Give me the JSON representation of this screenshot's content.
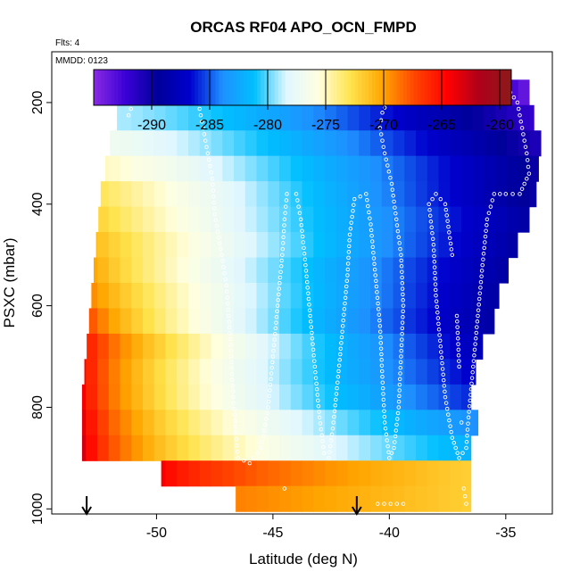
{
  "chart_data": {
    "type": "heatmap",
    "title": "ORCAS RF04 APO_OCN_FMPD",
    "note_flights": "Flts: 4",
    "note_date": "MMDD: 0123",
    "xlabel": "Latitude (deg N)",
    "ylabel": "PSXC (mbar)",
    "xlim": [
      -54.5,
      -33
    ],
    "ylim": [
      1010,
      100
    ],
    "x_ticks": [
      -50,
      -45,
      -40,
      -35
    ],
    "x_tick_labels": [
      "-50",
      "-45",
      "-40",
      "-35"
    ],
    "y_ticks": [
      200,
      400,
      600,
      800,
      1000
    ],
    "y_tick_labels": [
      "200",
      "400",
      "600",
      "800",
      "1000"
    ],
    "y_reversed": true,
    "colorbar": {
      "range": [
        -295,
        -259
      ],
      "ticks": [
        -290,
        -285,
        -280,
        -275,
        -270,
        -265,
        -260
      ],
      "tick_labels": [
        "-290",
        "-285",
        "-280",
        "-275",
        "-270",
        "-265",
        "-260"
      ],
      "colors": [
        "#8A2BE2",
        "#3A00D6",
        "#00009A",
        "#0000CD",
        "#1E90FF",
        "#00BFFF",
        "#E0F7FF",
        "#FFFFE0",
        "#FFE34D",
        "#FFA500",
        "#FF4500",
        "#FF0000",
        "#B0001A",
        "#8B1A1A"
      ]
    },
    "rows": [
      {
        "p": 180,
        "lat_min": -51.5,
        "lat_max": -34,
        "v_min": -271,
        "v_max": -294,
        "k": 1.3
      },
      {
        "p": 230,
        "lat_min": -51.7,
        "lat_max": -33.8,
        "v_min": -279,
        "v_max": -292,
        "k": 1.3
      },
      {
        "p": 280,
        "lat_min": -52.0,
        "lat_max": -33.5,
        "v_min": -277,
        "v_max": -291,
        "k": 1.2
      },
      {
        "p": 330,
        "lat_min": -52.2,
        "lat_max": -33.6,
        "v_min": -275,
        "v_max": -290,
        "k": 1.1
      },
      {
        "p": 380,
        "lat_min": -52.4,
        "lat_max": -33.7,
        "v_min": -273,
        "v_max": -290,
        "k": 1.0
      },
      {
        "p": 430,
        "lat_min": -52.5,
        "lat_max": -34,
        "v_min": -272,
        "v_max": -289,
        "k": 0.9
      },
      {
        "p": 480,
        "lat_min": -52.6,
        "lat_max": -34.5,
        "v_min": -271,
        "v_max": -289,
        "k": 0.9
      },
      {
        "p": 530,
        "lat_min": -52.7,
        "lat_max": -34.9,
        "v_min": -270,
        "v_max": -289,
        "k": 0.8
      },
      {
        "p": 580,
        "lat_min": -52.8,
        "lat_max": -35.3,
        "v_min": -269,
        "v_max": -289,
        "k": 0.8
      },
      {
        "p": 630,
        "lat_min": -52.9,
        "lat_max": -35.5,
        "v_min": -267,
        "v_max": -289,
        "k": 0.7
      },
      {
        "p": 680,
        "lat_min": -53.0,
        "lat_max": -36,
        "v_min": -265,
        "v_max": -288,
        "k": 0.7
      },
      {
        "p": 730,
        "lat_min": -53.1,
        "lat_max": -36.3,
        "v_min": -264,
        "v_max": -287,
        "k": 0.6
      },
      {
        "p": 780,
        "lat_min": -53.2,
        "lat_max": -36.5,
        "v_min": -263,
        "v_max": -286,
        "k": 0.55
      },
      {
        "p": 830,
        "lat_min": -53.2,
        "lat_max": -36.2,
        "v_min": -262,
        "v_max": -284,
        "k": 0.5
      },
      {
        "p": 880,
        "lat_min": -53.2,
        "lat_max": -36.5,
        "v_min": -261,
        "v_max": -282,
        "k": 0.45
      },
      {
        "p": 930,
        "lat_min": -49.8,
        "lat_max": -36.5,
        "v_min": -264,
        "v_max": -272,
        "k": 0.6
      },
      {
        "p": 980,
        "lat_min": -46.6,
        "lat_max": -36.5,
        "v_min": -269,
        "v_max": -272,
        "k": 1.0
      }
    ],
    "flight_track": [
      [
        -51.2,
        225
      ],
      [
        -51.0,
        200
      ],
      [
        -50.8,
        180
      ],
      [
        -50.0,
        180
      ],
      [
        -49.0,
        180
      ],
      [
        -48.4,
        180
      ],
      [
        -48.2,
        200
      ],
      [
        -48.0,
        250
      ],
      [
        -47.8,
        300
      ],
      [
        -47.6,
        350
      ],
      [
        -47.5,
        420
      ],
      [
        -47.2,
        500
      ],
      [
        -47.0,
        560
      ],
      [
        -46.9,
        620
      ],
      [
        -46.8,
        700
      ],
      [
        -46.7,
        780
      ],
      [
        -46.6,
        850
      ],
      [
        -46.5,
        900
      ],
      [
        -46.0,
        910
      ],
      [
        -45.5,
        880
      ],
      [
        -45.2,
        800
      ],
      [
        -45.0,
        700
      ],
      [
        -44.8,
        600
      ],
      [
        -44.6,
        500
      ],
      [
        -44.5,
        430
      ],
      [
        -44.4,
        380
      ],
      [
        -44.0,
        380
      ],
      [
        -43.8,
        430
      ],
      [
        -43.6,
        520
      ],
      [
        -43.4,
        620
      ],
      [
        -43.2,
        720
      ],
      [
        -43.0,
        820
      ],
      [
        -42.8,
        890
      ],
      [
        -42.6,
        900
      ],
      [
        -42.4,
        830
      ],
      [
        -42.2,
        740
      ],
      [
        -42.0,
        640
      ],
      [
        -41.8,
        540
      ],
      [
        -41.7,
        460
      ],
      [
        -41.5,
        390
      ],
      [
        -41.0,
        380
      ],
      [
        -40.8,
        440
      ],
      [
        -40.6,
        540
      ],
      [
        -40.4,
        640
      ],
      [
        -40.3,
        740
      ],
      [
        -40.2,
        830
      ],
      [
        -40.0,
        900
      ],
      [
        -39.8,
        880
      ],
      [
        -39.6,
        800
      ],
      [
        -39.5,
        700
      ],
      [
        -39.4,
        600
      ],
      [
        -39.5,
        500
      ],
      [
        -39.7,
        430
      ],
      [
        -39.9,
        360
      ],
      [
        -40.2,
        300
      ],
      [
        -40.4,
        250
      ],
      [
        -40.3,
        220
      ],
      [
        -40.0,
        190
      ],
      [
        -39.6,
        180
      ],
      [
        -38.5,
        180
      ],
      [
        -37.5,
        180
      ],
      [
        -36.5,
        180
      ],
      [
        -35.5,
        180
      ],
      [
        -34.8,
        180
      ],
      [
        -34.5,
        200
      ],
      [
        -34.3,
        250
      ],
      [
        -34.1,
        300
      ],
      [
        -34.0,
        340
      ],
      [
        -34.4,
        380
      ],
      [
        -35.0,
        380
      ],
      [
        -35.5,
        380
      ],
      [
        -35.8,
        430
      ],
      [
        -36.0,
        520
      ],
      [
        -36.2,
        620
      ],
      [
        -36.4,
        720
      ],
      [
        -36.6,
        820
      ],
      [
        -36.7,
        880
      ],
      [
        -37.0,
        900
      ],
      [
        -37.3,
        860
      ],
      [
        -37.6,
        780
      ],
      [
        -37.8,
        680
      ],
      [
        -38.0,
        580
      ],
      [
        -38.1,
        480
      ],
      [
        -38.3,
        400
      ],
      [
        -38.0,
        380
      ],
      [
        -37.6,
        400
      ],
      [
        -37.3,
        500
      ],
      [
        -37.1,
        620
      ],
      [
        -37.0,
        720
      ],
      [
        -36.9,
        830
      ],
      [
        -36.8,
        960
      ],
      [
        -36.7,
        990
      ],
      [
        -39.4,
        990
      ],
      [
        -40.5,
        990
      ],
      [
        -44.5,
        960
      ],
      [
        -53.4,
        800
      ],
      [
        -53.4,
        880
      ],
      [
        -53.5,
        930
      ],
      [
        -53.3,
        700
      ],
      [
        -53.0,
        620
      ]
    ],
    "arrows_lat": [
      -53.0,
      -41.4
    ]
  }
}
